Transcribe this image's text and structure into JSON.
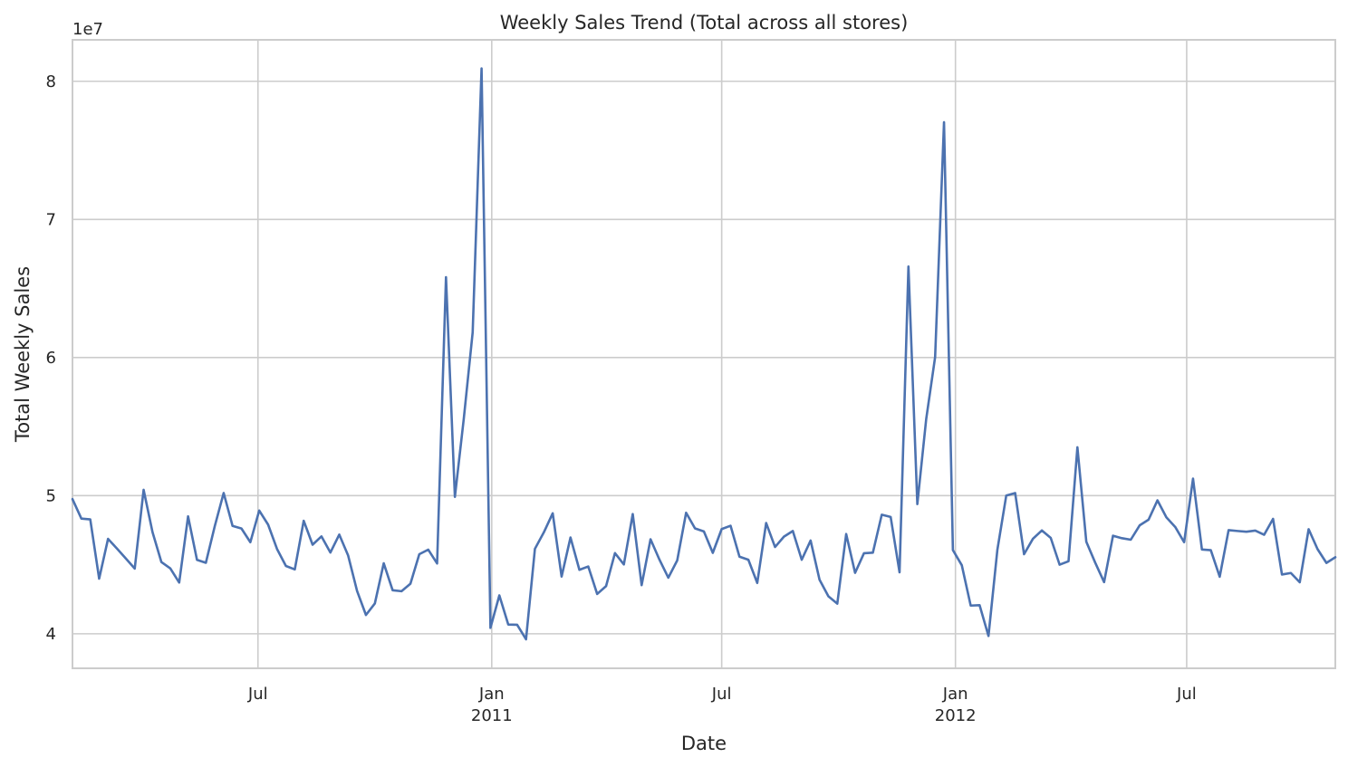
{
  "chart_data": {
    "type": "line",
    "title": "Weekly Sales Trend (Total across all stores)",
    "xlabel": "Date",
    "ylabel": "Total Weekly Sales",
    "y_scale_note": "1e7",
    "grid": true,
    "line_color": "#4c72b0",
    "x_range": [
      "2010-02-05",
      "2012-10-26"
    ],
    "ylim": [
      37500000,
      83000000
    ],
    "x_ticks": [
      {
        "date": "2010-07-01",
        "label": "Jul",
        "sublabel": ""
      },
      {
        "date": "2011-01-01",
        "label": "Jan",
        "sublabel": "2011"
      },
      {
        "date": "2011-07-01",
        "label": "Jul",
        "sublabel": ""
      },
      {
        "date": "2012-01-01",
        "label": "Jan",
        "sublabel": "2012"
      },
      {
        "date": "2012-07-01",
        "label": "Jul",
        "sublabel": ""
      }
    ],
    "y_ticks": [
      {
        "value": 40000000,
        "label": "4"
      },
      {
        "value": 50000000,
        "label": "5"
      },
      {
        "value": 60000000,
        "label": "6"
      },
      {
        "value": 70000000,
        "label": "7"
      },
      {
        "value": 80000000,
        "label": "8"
      }
    ],
    "series": [
      {
        "name": "",
        "x": [
          "2010-02-05",
          "2010-02-12",
          "2010-02-19",
          "2010-02-26",
          "2010-03-05",
          "2010-03-12",
          "2010-03-19",
          "2010-03-26",
          "2010-04-02",
          "2010-04-09",
          "2010-04-16",
          "2010-04-23",
          "2010-04-30",
          "2010-05-07",
          "2010-05-14",
          "2010-05-21",
          "2010-05-28",
          "2010-06-04",
          "2010-06-11",
          "2010-06-18",
          "2010-06-25",
          "2010-07-02",
          "2010-07-09",
          "2010-07-16",
          "2010-07-23",
          "2010-07-30",
          "2010-08-06",
          "2010-08-13",
          "2010-08-20",
          "2010-08-27",
          "2010-09-03",
          "2010-09-10",
          "2010-09-17",
          "2010-09-24",
          "2010-10-01",
          "2010-10-08",
          "2010-10-15",
          "2010-10-22",
          "2010-10-29",
          "2010-11-05",
          "2010-11-12",
          "2010-11-19",
          "2010-11-26",
          "2010-12-03",
          "2010-12-10",
          "2010-12-17",
          "2010-12-24",
          "2010-12-31",
          "2011-01-07",
          "2011-01-14",
          "2011-01-21",
          "2011-01-28",
          "2011-02-04",
          "2011-02-11",
          "2011-02-18",
          "2011-02-25",
          "2011-03-04",
          "2011-03-11",
          "2011-03-18",
          "2011-03-25",
          "2011-04-01",
          "2011-04-08",
          "2011-04-15",
          "2011-04-22",
          "2011-04-29",
          "2011-05-06",
          "2011-05-13",
          "2011-05-20",
          "2011-05-27",
          "2011-06-03",
          "2011-06-10",
          "2011-06-17",
          "2011-06-24",
          "2011-07-01",
          "2011-07-08",
          "2011-07-15",
          "2011-07-22",
          "2011-07-29",
          "2011-08-05",
          "2011-08-12",
          "2011-08-19",
          "2011-08-26",
          "2011-09-02",
          "2011-09-09",
          "2011-09-16",
          "2011-09-23",
          "2011-09-30",
          "2011-10-07",
          "2011-10-14",
          "2011-10-21",
          "2011-10-28",
          "2011-11-04",
          "2011-11-11",
          "2011-11-18",
          "2011-11-25",
          "2011-12-02",
          "2011-12-09",
          "2011-12-16",
          "2011-12-23",
          "2011-12-30",
          "2012-01-06",
          "2012-01-13",
          "2012-01-20",
          "2012-01-27",
          "2012-02-03",
          "2012-02-10",
          "2012-02-17",
          "2012-02-24",
          "2012-03-02",
          "2012-03-09",
          "2012-03-16",
          "2012-03-23",
          "2012-03-30",
          "2012-04-06",
          "2012-04-13",
          "2012-04-20",
          "2012-04-27",
          "2012-05-04",
          "2012-05-11",
          "2012-05-18",
          "2012-05-25",
          "2012-06-01",
          "2012-06-08",
          "2012-06-15",
          "2012-06-22",
          "2012-06-29",
          "2012-07-06",
          "2012-07-13",
          "2012-07-20",
          "2012-07-27",
          "2012-08-03",
          "2012-08-10",
          "2012-08-17",
          "2012-08-24",
          "2012-08-31",
          "2012-09-07",
          "2012-09-14",
          "2012-09-21",
          "2012-09-28",
          "2012-10-05",
          "2012-10-12",
          "2012-10-19",
          "2012-10-26"
        ],
        "values": [
          49750000,
          48340000,
          48280000,
          43990000,
          46870000,
          46170000,
          45450000,
          44720000,
          50420000,
          47360000,
          45190000,
          44730000,
          43710000,
          48500000,
          45350000,
          45140000,
          47790000,
          50190000,
          47810000,
          47620000,
          46630000,
          48920000,
          47900000,
          46140000,
          44910000,
          44660000,
          48180000,
          46450000,
          47050000,
          45880000,
          47180000,
          45660000,
          43100000,
          41360000,
          42190000,
          45100000,
          43150000,
          43080000,
          43620000,
          45760000,
          46090000,
          45090000,
          65820000,
          49910000,
          55560000,
          61820000,
          80930000,
          40430000,
          42780000,
          40670000,
          40650000,
          39600000,
          46150000,
          47340000,
          48720000,
          44140000,
          46970000,
          44630000,
          44870000,
          42880000,
          43450000,
          45840000,
          45020000,
          48670000,
          43520000,
          46840000,
          45370000,
          44060000,
          45310000,
          48760000,
          47630000,
          47410000,
          45860000,
          47580000,
          47820000,
          45580000,
          45360000,
          43680000,
          48020000,
          46280000,
          47030000,
          47440000,
          45360000,
          46750000,
          43920000,
          42710000,
          42180000,
          47220000,
          44410000,
          45830000,
          45870000,
          48620000,
          48460000,
          44450000,
          66590000,
          49390000,
          55560000,
          60030000,
          77040000,
          46060000,
          44960000,
          42040000,
          42070000,
          39840000,
          46080000,
          50010000,
          50190000,
          45760000,
          46880000,
          47480000,
          46940000,
          45000000,
          45250000,
          53500000,
          46660000,
          45150000,
          43740000,
          47100000,
          46920000,
          46810000,
          47850000,
          48260000,
          49660000,
          48430000,
          47730000,
          46630000,
          51230000,
          46100000,
          46050000,
          44130000,
          47500000,
          47440000,
          47390000,
          47470000,
          47170000,
          48320000,
          44290000,
          44400000,
          43730000,
          47570000,
          46130000,
          45130000,
          45540000
        ]
      }
    ]
  }
}
